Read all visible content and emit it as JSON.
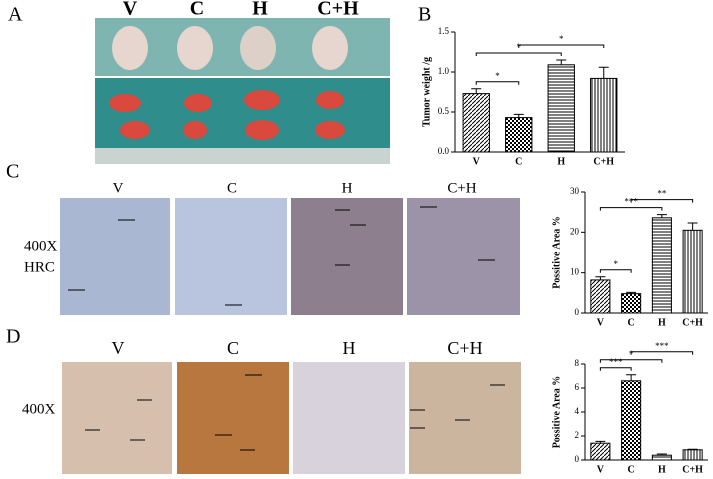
{
  "panel_labels": [
    "A",
    "B",
    "C",
    "D"
  ],
  "groups": [
    "V",
    "C",
    "H",
    "C+H"
  ],
  "row_labels": {
    "c": [
      "400X",
      "HRC"
    ],
    "d": [
      "400X"
    ]
  },
  "chart_data": [
    {
      "type": "bar",
      "ylabel": "Tumor weight /g",
      "categories": [
        "V",
        "C",
        "H",
        "C+H"
      ],
      "values": [
        0.73,
        0.43,
        1.09,
        0.92
      ],
      "errors": [
        0.06,
        0.04,
        0.06,
        0.14
      ],
      "ylim": [
        0,
        1.5
      ],
      "yticks": [
        {
          "value": 0,
          "label": "0.0"
        },
        0.5,
        {
          "value": 1,
          "label": "1.0"
        },
        1.5
      ],
      "color": "#000000",
      "patterns": [
        "diagonal",
        "checker",
        "horizontal",
        "vertical"
      ],
      "annotations": [
        {
          "text": "*",
          "between": [
            "V",
            "C"
          ]
        },
        {
          "text": "*",
          "between": [
            "V",
            "H"
          ]
        },
        {
          "text": "*",
          "between": [
            "C",
            "C+H"
          ]
        }
      ]
    },
    {
      "type": "bar",
      "ylabel": "Possitive Area %",
      "categories": [
        "V",
        "C",
        "H",
        "C+H"
      ],
      "values": [
        8.2,
        4.8,
        23.6,
        20.5
      ],
      "errors": [
        0.8,
        0.3,
        0.8,
        1.8
      ],
      "ylim": [
        0,
        30
      ],
      "yticks": [
        0,
        10,
        20,
        30
      ],
      "color": "#000000",
      "patterns": [
        "diagonal",
        "checker",
        "horizontal",
        "vertical"
      ],
      "annotations": [
        {
          "text": "*",
          "between": [
            "V",
            "C"
          ]
        },
        {
          "text": "***",
          "between": [
            "V",
            "H"
          ]
        },
        {
          "text": "**",
          "between": [
            "C",
            "C+H"
          ]
        }
      ]
    },
    {
      "type": "bar",
      "ylabel": "Possitive Area %",
      "categories": [
        "V",
        "C",
        "H",
        "C+H"
      ],
      "values": [
        1.4,
        6.6,
        0.4,
        0.85
      ],
      "errors": [
        0.15,
        0.5,
        0.1,
        0.05
      ],
      "ylim": [
        0,
        8
      ],
      "yticks": [
        0,
        2,
        4,
        6,
        8
      ],
      "color": "#000000",
      "patterns": [
        "diagonal",
        "checker",
        "horizontal",
        "vertical"
      ],
      "annotations": [
        {
          "text": "***",
          "between": [
            "V",
            "C"
          ]
        },
        {
          "text": "*",
          "between": [
            "V",
            "H"
          ]
        },
        {
          "text": "***",
          "between": [
            "C",
            "C+H"
          ]
        }
      ]
    }
  ]
}
